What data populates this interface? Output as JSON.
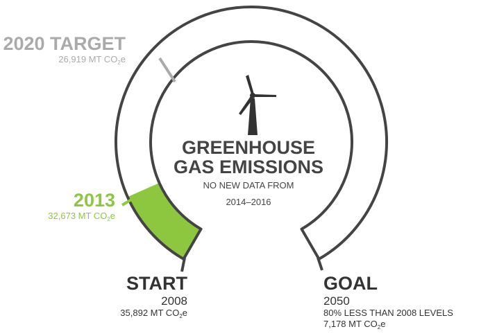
{
  "target": {
    "title": "2020 TARGET",
    "amount": {
      "text": "26,919 MT CO",
      "sub": "2",
      "end": "e"
    }
  },
  "current": {
    "title": "2013",
    "amount": {
      "text": "32,673 MT CO",
      "sub": "2",
      "end": "e"
    }
  },
  "center": {
    "title_1": "GREENHOUSE",
    "title_2": "GAS EMISSIONS",
    "note_1": "NO NEW DATA FROM",
    "note_2": "2014–2016"
  },
  "start": {
    "title": "START",
    "year": "2008",
    "amount": {
      "text": "35,892 MT CO",
      "sub": "2",
      "end": "e"
    }
  },
  "goal": {
    "title": "GOAL",
    "year": "2050",
    "detail": "80% LESS THAN 2008 LEVELS",
    "amount": {
      "text": "7,178 MT CO",
      "sub": "2",
      "end": "e"
    }
  }
}
